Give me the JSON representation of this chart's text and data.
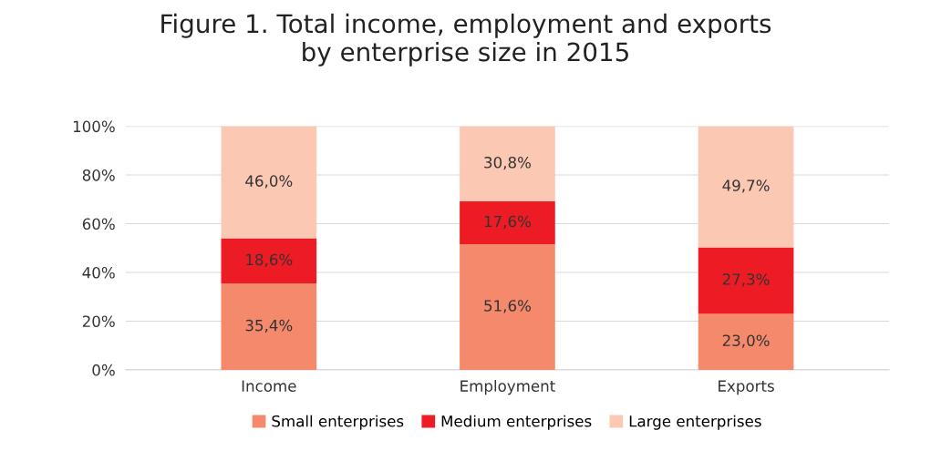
{
  "chart_data": {
    "type": "bar",
    "stacked": true,
    "title": "Figure 1. Total income, employment and exports\nby enterprise size in 2015",
    "categories": [
      "Income",
      "Employment",
      "Exports"
    ],
    "series": [
      {
        "name": "Small enterprises",
        "color": "#f4896b",
        "values": [
          35.4,
          51.6,
          23.0
        ],
        "value_labels": [
          "35,4%",
          "51,6%",
          "23,0%"
        ]
      },
      {
        "name": "Medium enterprises",
        "color": "#ed1c24",
        "values": [
          18.6,
          17.6,
          27.3
        ],
        "value_labels": [
          "18,6%",
          "17,6%",
          "27,3%"
        ]
      },
      {
        "name": "Large enterprises",
        "color": "#fbc8b4",
        "values": [
          46.0,
          30.8,
          49.7
        ],
        "value_labels": [
          "46,0%",
          "30,8%",
          "49,7%"
        ]
      }
    ],
    "ylim": [
      0,
      100
    ],
    "yticks": [
      {
        "value": 0,
        "label": "0%"
      },
      {
        "value": 20,
        "label": "20%"
      },
      {
        "value": 40,
        "label": "40%"
      },
      {
        "value": 60,
        "label": "60%"
      },
      {
        "value": 80,
        "label": "80%"
      },
      {
        "value": 100,
        "label": "100%"
      }
    ],
    "grid": "y",
    "legend": "bottom"
  }
}
